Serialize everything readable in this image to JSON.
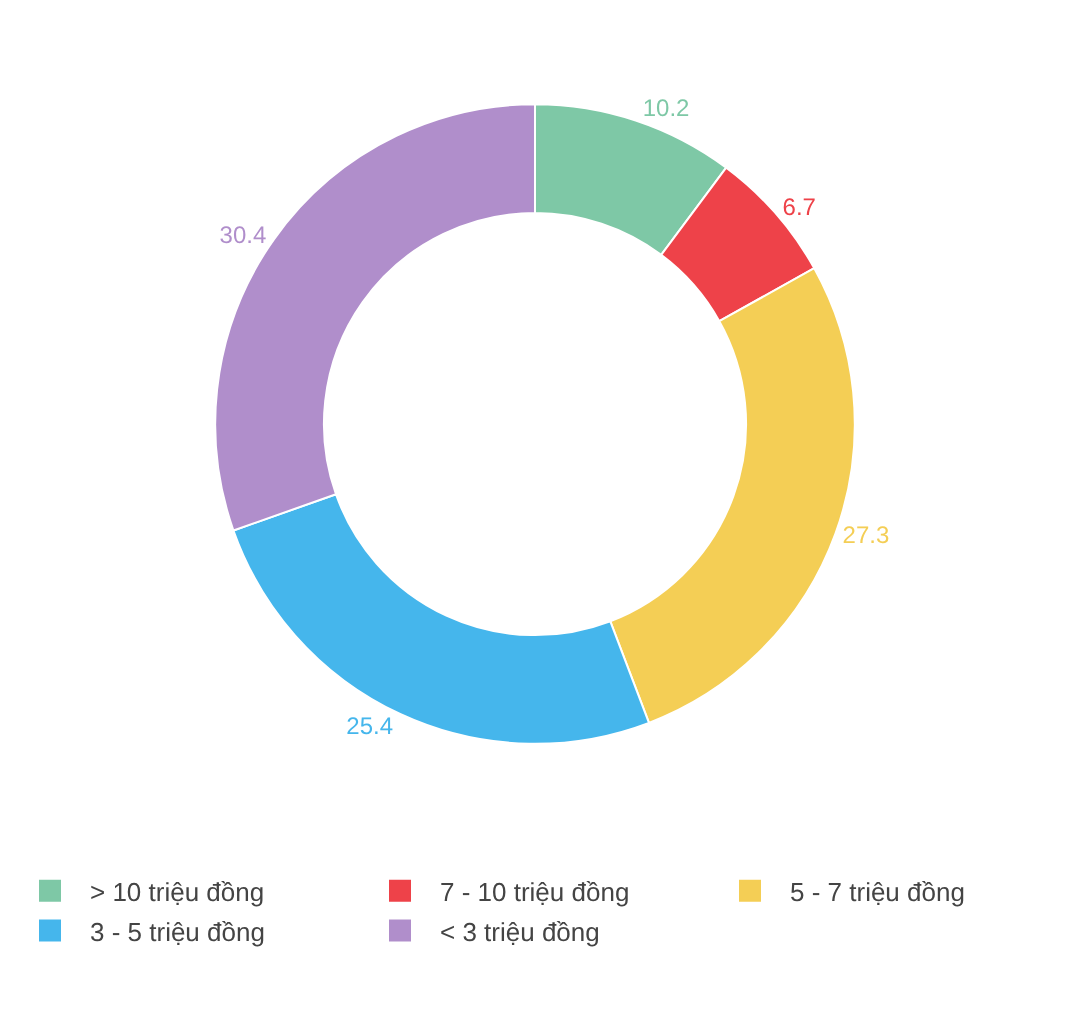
{
  "chart_data": {
    "type": "donut",
    "categories": [
      "> 10 triệu đồng",
      "7 - 10 triệu đồng",
      "5 - 7 triệu đồng",
      "3 - 5 triệu đồng",
      "< 3 triệu đồng"
    ],
    "values": [
      10.2,
      6.7,
      27.3,
      25.4,
      30.4
    ],
    "colors": [
      "#7ec8a6",
      "#ee4249",
      "#f4ce55",
      "#45b6ec",
      "#b08ecb"
    ],
    "data_labels": true,
    "legend": "bottom"
  }
}
